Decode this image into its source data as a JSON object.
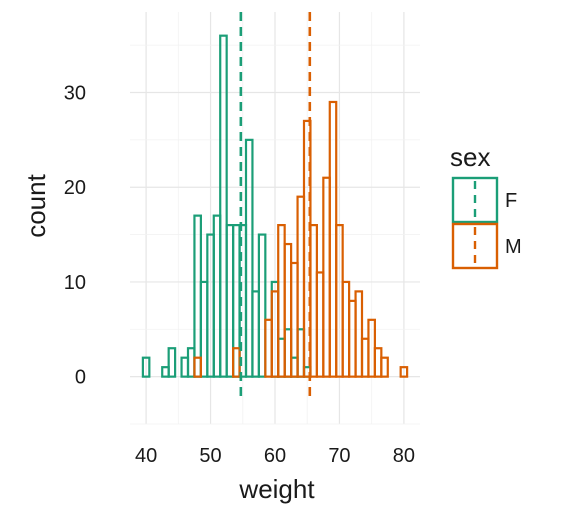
{
  "chart_data": {
    "type": "bar",
    "subtype": "histogram",
    "xlabel": "weight",
    "ylabel": "count",
    "xlim": [
      37.5,
      82.5
    ],
    "ylim": [
      -5,
      38.5
    ],
    "bin_width": 1,
    "x_ticks": [
      40,
      50,
      60,
      70,
      80
    ],
    "y_ticks": [
      0,
      10,
      20,
      30
    ],
    "grid": true,
    "legend": {
      "title": "sex",
      "position": "right",
      "entries": [
        {
          "label": "F",
          "color": "#1b9e77"
        },
        {
          "label": "M",
          "color": "#d95f02"
        }
      ]
    },
    "series": [
      {
        "name": "F",
        "color": "#1b9e77",
        "mean": 54.7,
        "bins": [
          [
            40,
            2
          ],
          [
            41,
            0
          ],
          [
            42,
            0
          ],
          [
            43,
            1
          ],
          [
            44,
            3
          ],
          [
            45,
            0
          ],
          [
            46,
            2
          ],
          [
            47,
            3
          ],
          [
            48,
            17
          ],
          [
            49,
            10
          ],
          [
            50,
            15
          ],
          [
            51,
            17
          ],
          [
            52,
            36
          ],
          [
            53,
            16
          ],
          [
            54,
            16
          ],
          [
            55,
            16
          ],
          [
            56,
            25
          ],
          [
            57,
            9
          ],
          [
            58,
            15
          ],
          [
            59,
            0
          ],
          [
            60,
            10
          ],
          [
            61,
            4
          ],
          [
            62,
            5
          ],
          [
            63,
            2
          ],
          [
            64,
            5
          ],
          [
            65,
            1
          ]
        ]
      },
      {
        "name": "M",
        "color": "#d95f02",
        "mean": 65.4,
        "bins": [
          [
            48,
            2
          ],
          [
            49,
            0
          ],
          [
            50,
            0
          ],
          [
            51,
            0
          ],
          [
            52,
            0
          ],
          [
            53,
            0
          ],
          [
            54,
            3
          ],
          [
            55,
            0
          ],
          [
            56,
            0
          ],
          [
            57,
            0
          ],
          [
            58,
            0
          ],
          [
            59,
            6
          ],
          [
            60,
            9
          ],
          [
            61,
            16
          ],
          [
            62,
            14
          ],
          [
            63,
            12
          ],
          [
            64,
            19
          ],
          [
            65,
            27
          ],
          [
            66,
            16
          ],
          [
            67,
            11
          ],
          [
            68,
            21
          ],
          [
            69,
            29
          ],
          [
            70,
            16
          ],
          [
            71,
            10
          ],
          [
            72,
            8
          ],
          [
            73,
            9
          ],
          [
            74,
            4
          ],
          [
            75,
            6
          ],
          [
            76,
            3
          ],
          [
            77,
            2
          ],
          [
            78,
            0
          ],
          [
            79,
            0
          ],
          [
            80,
            1
          ]
        ]
      }
    ]
  }
}
